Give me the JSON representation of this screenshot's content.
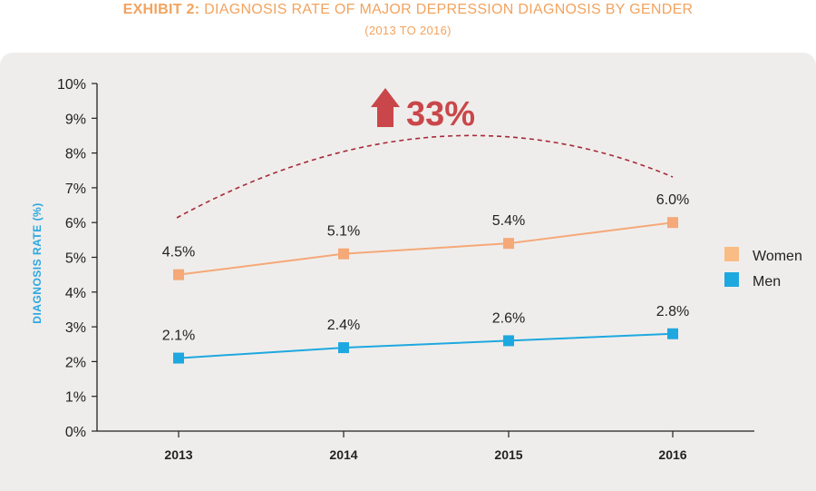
{
  "header": {
    "title_prefix": "EXHIBIT 2:",
    "title_rest": " DIAGNOSIS RATE OF MAJOR DEPRESSION DIAGNOSIS BY GENDER",
    "subtitle": "(2013 TO 2016)"
  },
  "callout": {
    "text": "33%",
    "icon": "up-arrow-icon",
    "color": "#c9474a"
  },
  "chart_data": {
    "type": "line",
    "title": "EXHIBIT 2: DIAGNOSIS RATE OF MAJOR DEPRESSION DIAGNOSIS BY GENDER",
    "subtitle": "(2013 TO 2016)",
    "xlabel": "",
    "ylabel": "DIAGNOSIS RATE (%)",
    "categories": [
      "2013",
      "2014",
      "2015",
      "2016"
    ],
    "ylim": [
      0,
      10
    ],
    "yticks": [
      "0%",
      "1%",
      "2%",
      "3%",
      "4%",
      "5%",
      "6%",
      "7%",
      "8%",
      "9%",
      "10%"
    ],
    "grid": false,
    "legend_position": "right",
    "series": [
      {
        "name": "Women",
        "values": [
          4.5,
          5.1,
          5.4,
          6.0
        ],
        "labels": [
          "4.5%",
          "5.1%",
          "5.4%",
          "6.0%"
        ],
        "color": "#f5a878",
        "legend_color": "#f9bc84"
      },
      {
        "name": "Men",
        "values": [
          2.1,
          2.4,
          2.6,
          2.8
        ],
        "labels": [
          "2.1%",
          "2.4%",
          "2.6%",
          "2.8%"
        ],
        "color": "#1ea8e0",
        "legend_color": "#1ea8e0"
      }
    ],
    "annotation": "33%"
  }
}
